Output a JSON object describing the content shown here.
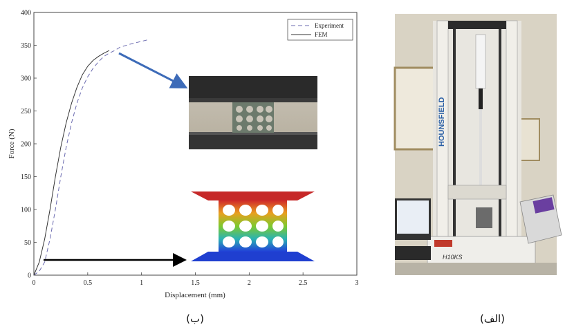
{
  "chart_data": {
    "type": "line",
    "xlabel": "Displacement (mm)",
    "ylabel": "Force (N)",
    "xlim": [
      0,
      3
    ],
    "ylim": [
      0,
      400
    ],
    "xticks": [
      "0",
      "0.5",
      "1",
      "1.5",
      "2",
      "2.5",
      "3"
    ],
    "yticks": [
      "0",
      "50",
      "100",
      "150",
      "200",
      "250",
      "300",
      "350",
      "400"
    ],
    "legend_position": "top-right",
    "grid": false,
    "series": [
      {
        "name": "Experiment",
        "style": "dashed",
        "color": "#6b6bb0",
        "x": [
          0,
          0.05,
          0.1,
          0.15,
          0.2,
          0.25,
          0.3,
          0.35,
          0.4,
          0.45,
          0.5,
          0.55,
          0.6,
          0.65,
          0.7,
          0.75,
          0.8,
          0.9,
          1.0,
          1.05
        ],
        "y": [
          0,
          6,
          20,
          55,
          100,
          150,
          195,
          232,
          262,
          285,
          302,
          315,
          325,
          333,
          338,
          342,
          347,
          352,
          356,
          358
        ]
      },
      {
        "name": "FEM",
        "style": "solid",
        "color": "#333333",
        "x": [
          0,
          0.05,
          0.1,
          0.15,
          0.2,
          0.25,
          0.3,
          0.35,
          0.4,
          0.45,
          0.5,
          0.55,
          0.6,
          0.65,
          0.7
        ],
        "y": [
          0,
          20,
          55,
          100,
          150,
          195,
          232,
          262,
          286,
          305,
          318,
          327,
          333,
          338,
          342
        ]
      }
    ]
  },
  "captions": {
    "left": "(ب)",
    "right": "(الف)"
  },
  "machine_brand": "HOUNSFIELD",
  "machine_model": "H10KS",
  "colors": {
    "arrow_blue": "#3d6bb8",
    "arrow_black": "#000000",
    "fem_top": "#c0392b",
    "fem_bottom": "#1f3fd0"
  }
}
